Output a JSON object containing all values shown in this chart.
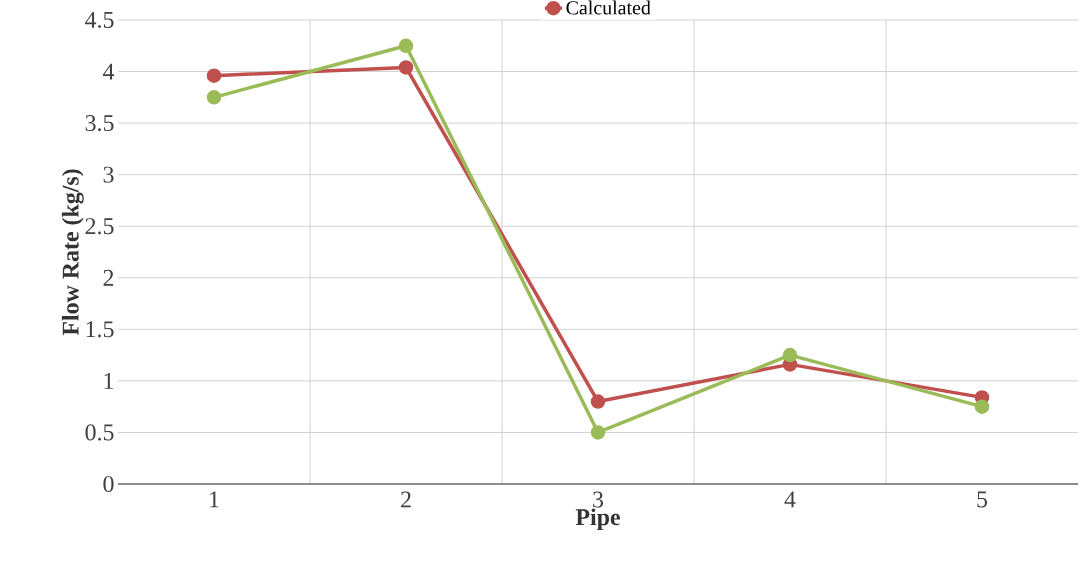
{
  "chart_data": {
    "type": "line",
    "xlabel": "Pipe",
    "ylabel": "Flow Rate (kg/s)",
    "categories": [
      "1",
      "2",
      "3",
      "4",
      "5"
    ],
    "series": [
      {
        "name": "Calculated",
        "color": "#c0504d",
        "values": [
          3.96,
          4.04,
          0.8,
          1.16,
          0.84
        ]
      },
      {
        "color": "#9bbb59",
        "values": [
          3.75,
          4.25,
          0.5,
          1.25,
          0.75
        ]
      }
    ],
    "ylim": [
      0,
      4.5
    ],
    "yticks": [
      0,
      0.5,
      1,
      1.5,
      2,
      2.5,
      3,
      3.5,
      4,
      4.5
    ],
    "grid": true,
    "legend": "top",
    "marker": "circle",
    "line_style": "solid"
  }
}
